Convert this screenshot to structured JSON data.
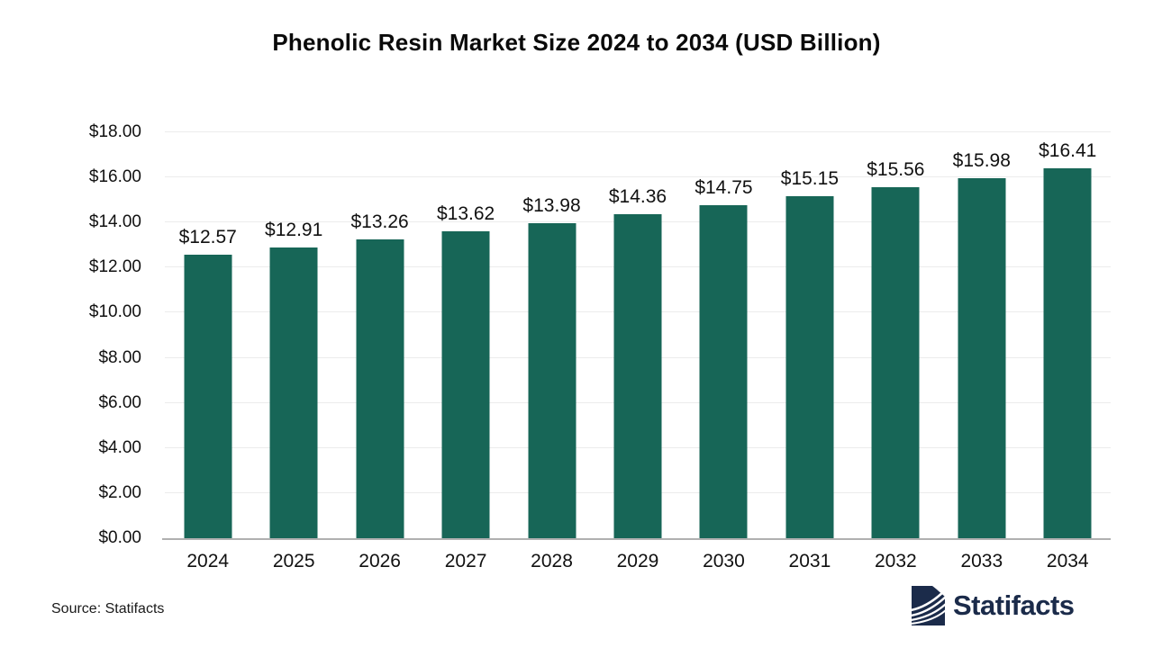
{
  "title": "Phenolic Resin Market Size 2024 to 2034 (USD Billion)",
  "chart_data": {
    "type": "bar",
    "title": "Phenolic Resin Market Size 2024 to 2034 (USD Billion)",
    "categories": [
      "2024",
      "2025",
      "2026",
      "2027",
      "2028",
      "2029",
      "2030",
      "2031",
      "2032",
      "2033",
      "2034"
    ],
    "values": [
      12.57,
      12.91,
      13.26,
      13.62,
      13.98,
      14.36,
      14.75,
      15.15,
      15.56,
      15.98,
      16.41
    ],
    "value_labels": [
      "$12.57",
      "$12.91",
      "$13.26",
      "$13.62",
      "$13.98",
      "$14.36",
      "$14.75",
      "$15.15",
      "$15.56",
      "$15.98",
      "$16.41"
    ],
    "currency_prefix": "$",
    "xlabel": "",
    "ylabel": "",
    "ylim": [
      0,
      18
    ],
    "ytick_step": 2,
    "ytick_labels": [
      "$0.00",
      "$2.00",
      "$4.00",
      "$6.00",
      "$8.00",
      "$10.00",
      "$12.00",
      "$14.00",
      "$16.00",
      "$18.00"
    ],
    "grid": true,
    "legend_position": "none",
    "bar_color": "#176657"
  },
  "footer": {
    "source_label": "Source: Statifacts",
    "brand_name": "Statifacts"
  },
  "colors": {
    "bar": "#176657",
    "axis_line": "#b0b0b0",
    "gridline": "#ececec",
    "text": "#111111",
    "brand_navy": "#1b2b4a"
  },
  "icons": {
    "brand_logo": "statifacts-waves-logo"
  }
}
